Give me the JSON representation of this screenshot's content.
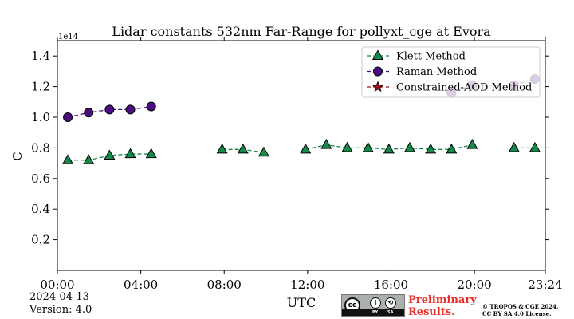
{
  "chart_data": {
    "type": "line",
    "title": "Lidar constants 532nm Far-Range for pollyxt_cge at Evora",
    "xlabel": "UTC",
    "ylabel": "C",
    "y_scale_label": "1e14",
    "x_unit": "hours UTC",
    "xlim": [
      0,
      23.4
    ],
    "ylim": [
      0,
      1.5
    ],
    "x_ticks": [
      0,
      4,
      8,
      12,
      16,
      20,
      23.4
    ],
    "x_tick_labels": [
      "00:00",
      "04:00",
      "08:00",
      "12:00",
      "16:00",
      "20:00",
      "23:24"
    ],
    "y_ticks": [
      0.2,
      0.4,
      0.6,
      0.8,
      1.0,
      1.2,
      1.4
    ],
    "y_tick_labels": [
      "0.2",
      "0.4",
      "0.6",
      "0.8",
      "1.0",
      "1.2",
      "1.4"
    ],
    "grid": false,
    "legend_position": "top-right",
    "series": [
      {
        "name": "Klett Method",
        "color": "#138a4a",
        "marker": "triangle",
        "segments": [
          {
            "x": [
              0.5,
              1.5,
              2.5,
              3.5,
              4.5
            ],
            "y": [
              0.72,
              0.72,
              0.75,
              0.76,
              0.76
            ]
          },
          {
            "x": [
              7.9,
              8.9,
              9.9
            ],
            "y": [
              0.79,
              0.79,
              0.77
            ]
          },
          {
            "x": [
              11.9,
              12.9,
              13.9,
              14.9,
              15.9,
              16.9,
              17.9,
              18.9,
              19.9
            ],
            "y": [
              0.79,
              0.82,
              0.8,
              0.8,
              0.79,
              0.8,
              0.79,
              0.79,
              0.82
            ]
          },
          {
            "x": [
              21.9,
              22.9
            ],
            "y": [
              0.8,
              0.8
            ]
          }
        ]
      },
      {
        "name": "Raman Method",
        "color": "#4b0b82",
        "marker": "circle",
        "segments": [
          {
            "x": [
              0.5,
              1.5,
              2.5,
              3.5,
              4.5
            ],
            "y": [
              1.0,
              1.03,
              1.05,
              1.05,
              1.07
            ]
          },
          {
            "x": [
              18.9,
              19.9,
              21.9,
              22.9
            ],
            "y": [
              1.16,
              1.21,
              1.21,
              1.25
            ]
          }
        ]
      },
      {
        "name": "Constrained-AOD Method",
        "color": "#a01010",
        "marker": "star",
        "segments": []
      }
    ]
  },
  "footer": {
    "date": "2024-04-13",
    "version": "Version: 4.0",
    "preliminary_line1": "Preliminary",
    "preliminary_line2": "Results.",
    "copyright_line1": "© TROPOS & CGE 2024.",
    "copyright_line2": "CC BY SA 4.0 License.",
    "license_badge": {
      "cc": "cc",
      "by": "BY",
      "sa": "SA"
    }
  }
}
